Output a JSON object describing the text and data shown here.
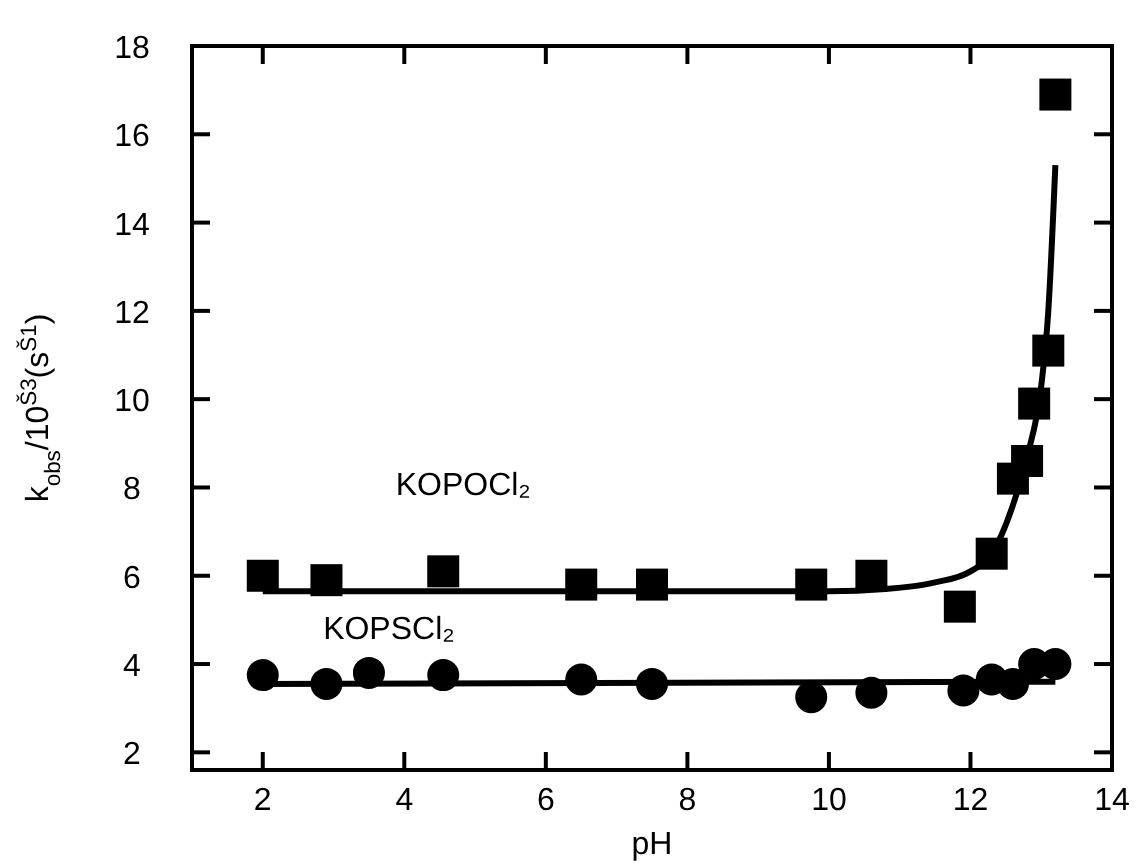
{
  "chart_data": {
    "type": "scatter",
    "xlabel": "pH",
    "ylabel": "k$_{obs}$/10$^{Š3}$(s$^{Š1}$)",
    "xlim": [
      1,
      14
    ],
    "ylim": [
      1.6,
      18
    ],
    "xticks": [
      2,
      4,
      6,
      8,
      10,
      12,
      14
    ],
    "yticks": [
      2,
      4,
      6,
      8,
      10,
      12,
      14,
      16,
      18
    ],
    "grid": false,
    "series": [
      {
        "name": "KOPOCl₂",
        "marker": "square",
        "color": "#000000",
        "x": [
          2.0,
          2.9,
          4.55,
          6.5,
          7.5,
          9.75,
          10.6,
          11.85,
          12.3,
          12.6,
          12.8,
          12.9,
          13.1,
          13.2
        ],
        "values": [
          6.0,
          5.9,
          6.1,
          5.8,
          5.8,
          5.8,
          6.0,
          5.3,
          6.5,
          8.2,
          8.6,
          9.9,
          11.1,
          16.9
        ]
      },
      {
        "name": "KOPSCl₂",
        "marker": "circle",
        "color": "#000000",
        "x": [
          2.0,
          2.9,
          3.5,
          4.55,
          6.5,
          7.5,
          9.75,
          10.6,
          11.9,
          12.3,
          12.6,
          12.9,
          13.2
        ],
        "values": [
          3.75,
          3.55,
          3.8,
          3.75,
          3.65,
          3.55,
          3.25,
          3.35,
          3.4,
          3.65,
          3.55,
          4.0,
          4.0
        ]
      },
      {
        "type": "line",
        "color": "#000000",
        "x": [
          2,
          10,
          10.8,
          11.5,
          12,
          12.3,
          12.6,
          12.8,
          13.0,
          13.1,
          13.2
        ],
        "values": [
          5.65,
          5.65,
          5.7,
          5.85,
          6.1,
          6.5,
          7.6,
          8.7,
          10.3,
          12.0,
          15.3
        ]
      },
      {
        "type": "line",
        "color": "#000000",
        "x": [
          2,
          13.2
        ],
        "values": [
          3.55,
          3.6
        ]
      }
    ]
  }
}
